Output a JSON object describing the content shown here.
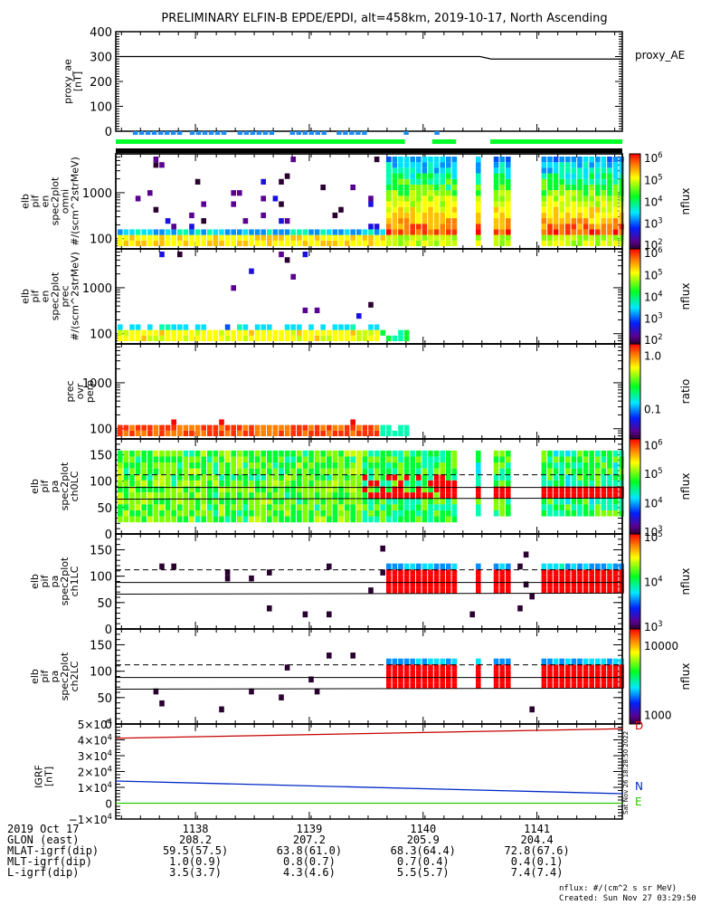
{
  "title": "PRELIMINARY ELFIN-B EPDE/EPDI, alt=458km, 2019-10-17, North Ascending",
  "colors": {
    "proxy_line": "#000000",
    "blue_bar": "#1E8CF0",
    "green_bar": "#00FF28",
    "black_bar": "#000000",
    "igrf_D": "#C80000",
    "igrf_N": "#0028C8",
    "igrf_E": "#28C800"
  },
  "chart_data": [
    {
      "type": "line",
      "name": "proxy_ae",
      "ylabel": "proxy_ae [nT]",
      "ylabel_lines": [
        "proxy_ae",
        "[nT]"
      ],
      "legend": "proxy_AE",
      "ylim": [
        0,
        400
      ],
      "yticks": [
        "0",
        "100",
        "200",
        "300",
        "400"
      ],
      "x": [
        1137.3,
        1141.75
      ],
      "values": [
        300,
        290
      ]
    },
    {
      "type": "bar",
      "name": "status-bars",
      "rows": [
        "blue",
        "green",
        "black"
      ],
      "blue_segments": [
        [
          1137.45,
          1137.86
        ],
        [
          1137.95,
          1138.28
        ],
        [
          1138.37,
          1138.7
        ],
        [
          1138.83,
          1139.14
        ],
        [
          1139.24,
          1139.48
        ],
        [
          1139.83,
          1139.86
        ],
        [
          1140.1,
          1140.12
        ]
      ],
      "green_segments": [
        [
          1137.3,
          1139.84
        ],
        [
          1140.08,
          1140.29
        ],
        [
          1140.59,
          1141.75
        ]
      ],
      "black_segments": [
        [
          1137.3,
          1141.75
        ]
      ]
    },
    {
      "type": "heatmap",
      "name": "omni",
      "ylabel_lines": [
        "elb",
        "pif",
        "en",
        "spec2plot",
        "omni",
        "#/(scm^2strMeV)"
      ],
      "scale": "log",
      "ylim": [
        60,
        7000
      ],
      "yticks": [
        "100",
        "1000"
      ],
      "colorbar": {
        "label": "nflux",
        "ticks": [
          "10^2",
          "10^3",
          "10^4",
          "10^5",
          "10^6"
        ]
      }
    },
    {
      "type": "heatmap",
      "name": "prec",
      "ylabel_lines": [
        "elb",
        "pif",
        "en",
        "spec2plot",
        "prec",
        "#/(scm^2strMeV)"
      ],
      "scale": "log",
      "ylim": [
        60,
        7000
      ],
      "yticks": [
        "100",
        "1000"
      ],
      "colorbar": {
        "label": "nflux",
        "ticks": [
          "10^2",
          "10^3",
          "10^4",
          "10^5",
          "10^6"
        ]
      }
    },
    {
      "type": "heatmap",
      "name": "prec-ovr-perp",
      "ylabel_lines": [
        "prec",
        "ovr",
        "perp"
      ],
      "scale": "log",
      "ylim": [
        60,
        7000
      ],
      "yticks": [
        "100",
        "1000"
      ],
      "colorbar": {
        "label": "ratio",
        "ticks": [
          "0.1",
          "1.0"
        ]
      }
    },
    {
      "type": "heatmap",
      "name": "ch0LC",
      "ylabel_lines": [
        "elb",
        "pif",
        "pa",
        "spec2plot",
        "ch0LC"
      ],
      "ylim": [
        0,
        180
      ],
      "yticks": [
        "0",
        "50",
        "100",
        "150"
      ],
      "colorbar": {
        "label": "nflux",
        "ticks": [
          "10^3",
          "10^4",
          "10^5",
          "10^6"
        ]
      }
    },
    {
      "type": "heatmap",
      "name": "ch1LC",
      "ylabel_lines": [
        "elb",
        "pif",
        "pa",
        "spec2plot",
        "ch1LC"
      ],
      "ylim": [
        0,
        180
      ],
      "yticks": [
        "0",
        "50",
        "100",
        "150"
      ],
      "colorbar": {
        "label": "nflux",
        "ticks": [
          "10^3",
          "10^4",
          "10^5"
        ]
      }
    },
    {
      "type": "heatmap",
      "name": "ch2LC",
      "ylabel_lines": [
        "elb",
        "pif",
        "pa",
        "spec2plot",
        "ch2LC"
      ],
      "ylim": [
        0,
        180
      ],
      "yticks": [
        "0",
        "50",
        "100",
        "150"
      ],
      "colorbar": {
        "label": "nflux",
        "ticks": [
          "1000",
          "10000"
        ]
      }
    },
    {
      "type": "line",
      "name": "igrf",
      "ylabel_lines": [
        "IGRF",
        "[nT]"
      ],
      "ylim": [
        -10000,
        50000
      ],
      "yticks": [
        "−1×10^4",
        "0",
        "1×10^4",
        "2×10^4",
        "3×10^4",
        "4×10^4",
        "5×10^4"
      ],
      "series": [
        {
          "name": "D",
          "values": [
            41000,
            47000
          ]
        },
        {
          "name": "N",
          "values": [
            14000,
            6000
          ]
        },
        {
          "name": "E",
          "values": [
            0,
            0
          ]
        }
      ],
      "x": [
        1137.3,
        1141.75
      ]
    }
  ],
  "xaxis": {
    "row_labels": [
      "2019 Oct 17",
      "GLON (east)",
      "MLAT-igrf(dip)",
      "MLT-igrf(dip)",
      "L-igrf(dip)"
    ],
    "ticks": [
      {
        "time": "1138",
        "glon": "208.2",
        "mlat": "59.5(57.5)",
        "mlt": "1.0(0.9)",
        "l": "3.5(3.7)"
      },
      {
        "time": "1139",
        "glon": "207.2",
        "mlat": "63.8(61.0)",
        "mlt": "0.8(0.7)",
        "l": "4.3(4.6)"
      },
      {
        "time": "1140",
        "glon": "205.9",
        "mlat": "68.3(64.4)",
        "mlt": "0.7(0.4)",
        "l": "5.5(5.7)"
      },
      {
        "time": "1141",
        "glon": "204.4",
        "mlat": "72.8(67.6)",
        "mlt": "0.4(0.1)",
        "l": "7.4(7.4)"
      }
    ]
  },
  "footer": {
    "units": "nflux: #/(cm^2 s sr MeV)",
    "created": "Created: Sun Nov 27 03:29:50 2022",
    "side_stamp": "Sat Nov 26 18:28:50 2022"
  },
  "legend_letters": {
    "D": "D",
    "N": "N",
    "E": "E"
  }
}
